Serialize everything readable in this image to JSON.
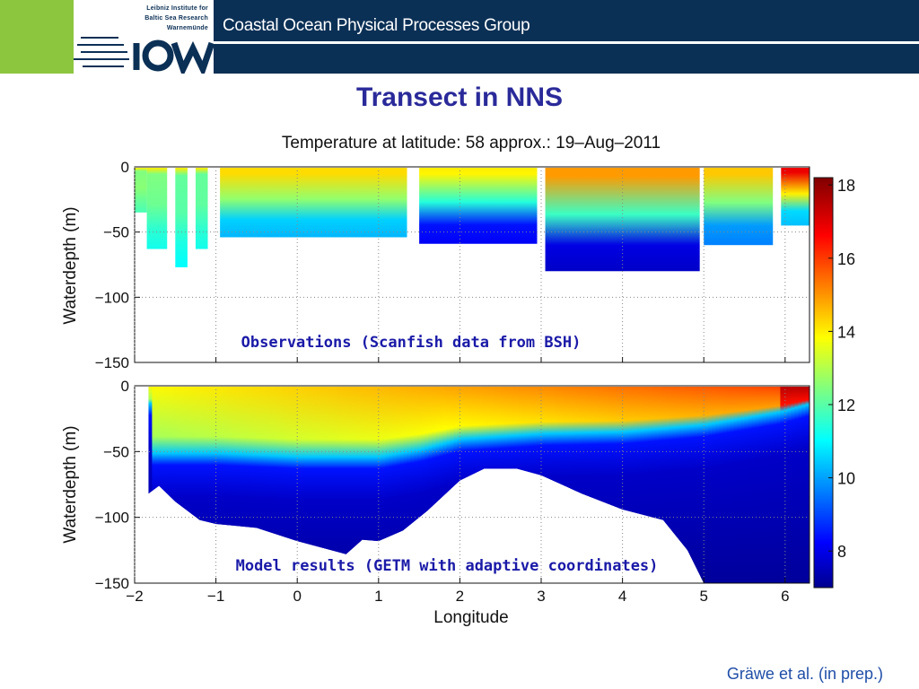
{
  "header": {
    "group_name": "Coastal Ocean Physical Processes Group",
    "institute_lines": [
      "Leibniz Institute for",
      "Baltic Sea Research",
      "Warnemünde"
    ],
    "logo_text": "iow",
    "brand_colors": {
      "navy": "#0b3056",
      "green": "#8cc63f"
    }
  },
  "slide": {
    "title": "Transect in NNS",
    "citation": "Gräwe et al. (in prep.)"
  },
  "chart_data": {
    "type": "heatmap",
    "title": "Temperature at latitude: 58  approx.: 19–Aug–2011",
    "xlabel": "Longitude",
    "ylabel": "Waterdepth (m)",
    "xlim": [
      -2,
      6.3
    ],
    "ylim": [
      -150,
      0
    ],
    "x_ticks": [
      -2,
      -1,
      0,
      1,
      2,
      3,
      4,
      5,
      6
    ],
    "y_ticks": [
      0,
      -50,
      -100,
      -150
    ],
    "colorbar": {
      "range": [
        7,
        18.2
      ],
      "ticks": [
        8,
        10,
        12,
        14,
        16,
        18
      ],
      "colormap": "jet"
    },
    "panels": [
      {
        "annotation": "Observations (Scanfish data from BSH)",
        "surface_temp": 14.5,
        "segments": [
          {
            "x0": -2.0,
            "x1": -1.85,
            "depth": 35,
            "surf": 12.6,
            "bottom": 12.0
          },
          {
            "x0": -1.85,
            "x1": -1.6,
            "depth": 63,
            "surf": 12.6,
            "bottom": 11.4
          },
          {
            "x0": -1.5,
            "x1": -1.35,
            "depth": 77,
            "surf": 12.3,
            "bottom": 11.2
          },
          {
            "x0": -1.25,
            "x1": -1.1,
            "depth": 63,
            "surf": 12.3,
            "bottom": 11.4
          },
          {
            "x0": -0.95,
            "x1": 1.35,
            "depth": 54,
            "surf": 14.4,
            "bottom": 10.4
          },
          {
            "x0": 1.5,
            "x1": 2.95,
            "depth": 59,
            "surf": 14.1,
            "bottom": 8.3
          },
          {
            "x0": 3.05,
            "x1": 4.95,
            "depth": 80,
            "surf": 15.1,
            "bottom": 7.8
          },
          {
            "x0": 5.0,
            "x1": 5.85,
            "depth": 60,
            "surf": 14.6,
            "bottom": 9.8
          },
          {
            "x0": 5.95,
            "x1": 6.3,
            "depth": 45,
            "surf": 17.0,
            "bottom": 10.5
          }
        ]
      },
      {
        "annotation": "Model results (GETM with adaptive coordinates)",
        "bottom_profile": [
          [
            -1.83,
            82
          ],
          [
            -1.7,
            76
          ],
          [
            -1.5,
            88
          ],
          [
            -1.2,
            102
          ],
          [
            -1.0,
            105
          ],
          [
            -0.5,
            108
          ],
          [
            0.0,
            118
          ],
          [
            0.6,
            128
          ],
          [
            0.8,
            117
          ],
          [
            1.0,
            118
          ],
          [
            1.3,
            110
          ],
          [
            1.6,
            95
          ],
          [
            2.0,
            72
          ],
          [
            2.3,
            63
          ],
          [
            2.7,
            63
          ],
          [
            3.0,
            68
          ],
          [
            3.5,
            82
          ],
          [
            4.0,
            94
          ],
          [
            4.5,
            102
          ],
          [
            4.8,
            125
          ],
          [
            5.0,
            150
          ],
          [
            6.3,
            150
          ]
        ],
        "thermocline_depth": [
          [
            -1.8,
            38
          ],
          [
            -1.0,
            38
          ],
          [
            0.0,
            40
          ],
          [
            1.0,
            40
          ],
          [
            1.5,
            36
          ],
          [
            2.0,
            30
          ],
          [
            3.0,
            27
          ],
          [
            4.0,
            26
          ],
          [
            5.0,
            22
          ],
          [
            5.9,
            15
          ],
          [
            6.3,
            10
          ]
        ]
      }
    ]
  }
}
